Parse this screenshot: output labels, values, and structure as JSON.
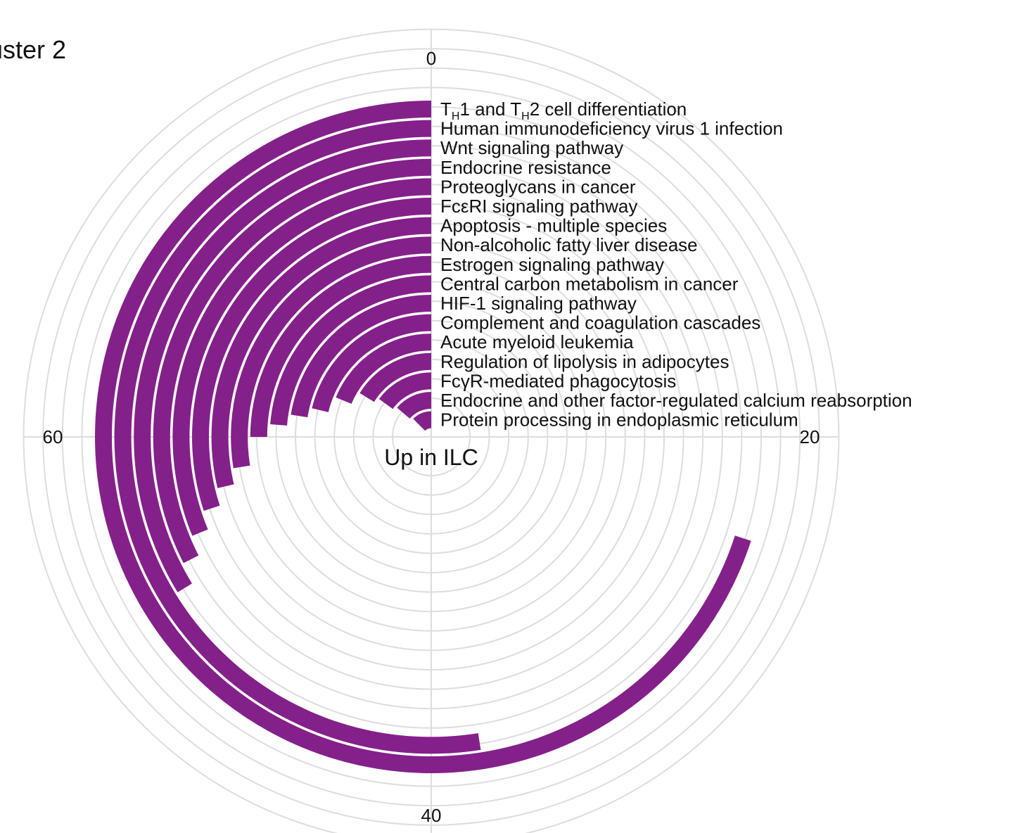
{
  "chart_data": {
    "type": "bar",
    "subtype": "radial-bar",
    "title": "uster 2",
    "center_label": "Up in ILC",
    "color": "#84208a",
    "axis_ticks": [
      "0",
      "20",
      "40",
      "60"
    ],
    "scale_max": 80,
    "categories": [
      {
        "label": "TH1 and TH2 cell differentiation",
        "parts": [
          [
            "T",
            ""
          ],
          [
            "H",
            "sub"
          ],
          [
            "1 and T",
            ""
          ],
          [
            "H",
            "sub"
          ],
          [
            "2 cell differentiation",
            ""
          ]
        ]
      },
      {
        "label": "Human immunodeficiency virus 1 infection"
      },
      {
        "label": "Wnt signaling pathway"
      },
      {
        "label": "Endocrine resistance"
      },
      {
        "label": "Proteoglycans in cancer"
      },
      {
        "label": "FcεRI signaling pathway"
      },
      {
        "label": "Apoptosis - multiple species"
      },
      {
        "label": "Non-alcoholic fatty liver disease"
      },
      {
        "label": "Estrogen signaling pathway"
      },
      {
        "label": "Central carbon metabolism in cancer"
      },
      {
        "label": "HIF-1 signaling pathway"
      },
      {
        "label": "Complement and coagulation cascades"
      },
      {
        "label": "Acute myeloid leukemia"
      },
      {
        "label": "Regulation of lipolysis in adipocytes"
      },
      {
        "label": "FcγR-mediated phagocytosis"
      },
      {
        "label": "Endocrine and other factor-regulated calcium reabsorption"
      },
      {
        "label": "Protein processing in endoplasmic reticulum"
      }
    ],
    "values": [
      56,
      42,
      27,
      26,
      25,
      24,
      23,
      22,
      20,
      19,
      18,
      17,
      15,
      13,
      12,
      11,
      10
    ]
  }
}
